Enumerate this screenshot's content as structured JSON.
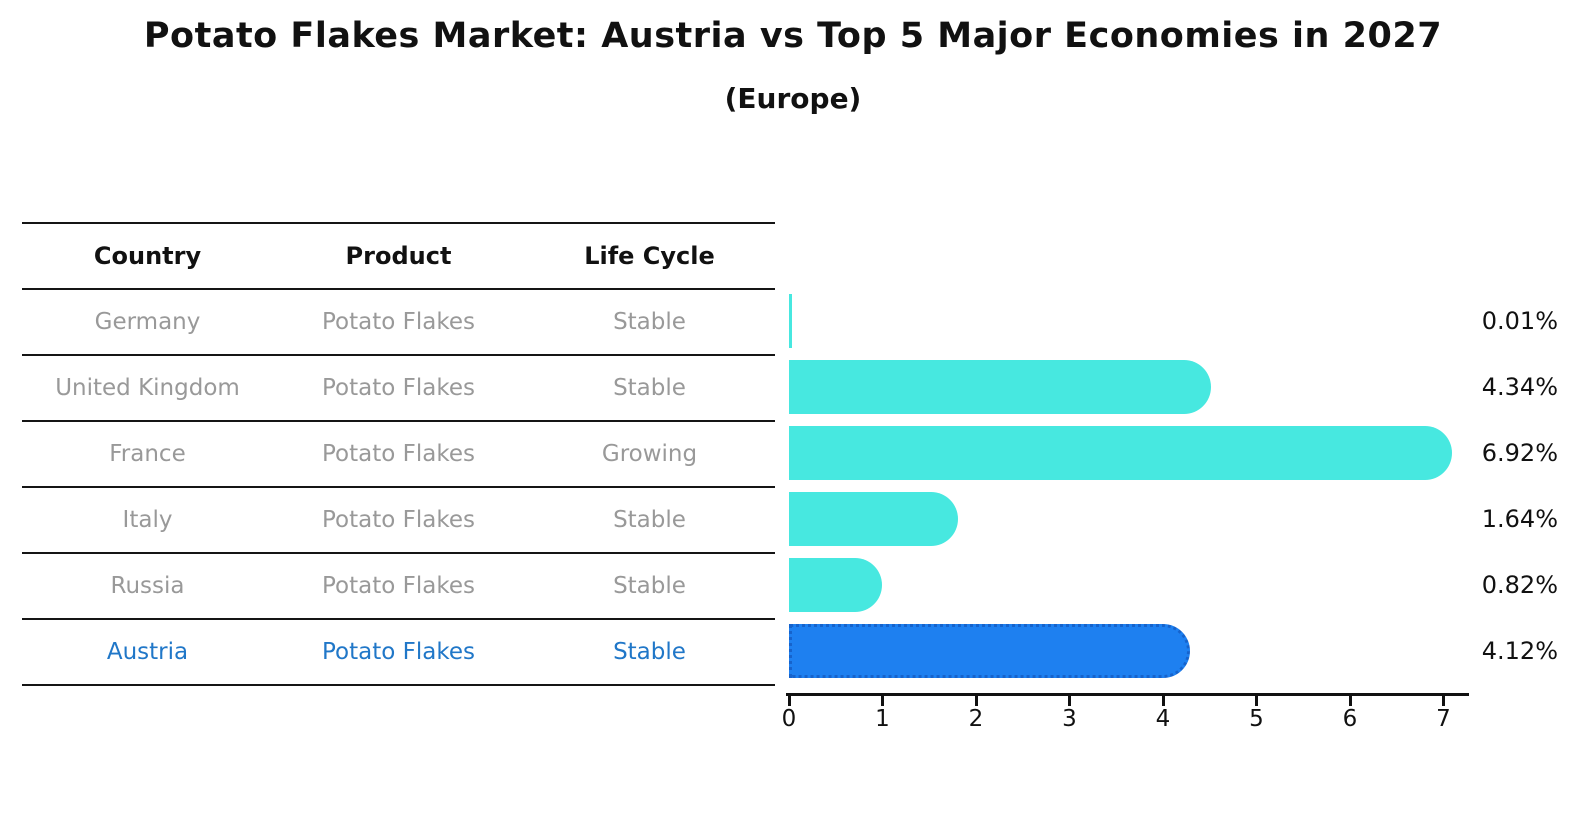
{
  "title": "Potato Flakes Market: Austria vs Top 5 Major Economies in 2027",
  "subtitle": "(Europe)",
  "table": {
    "headers": [
      "Country",
      "Product",
      "Life Cycle"
    ],
    "rows": [
      {
        "country": "Germany",
        "product": "Potato Flakes",
        "life_cycle": "Stable",
        "highlight": false
      },
      {
        "country": "United Kingdom",
        "product": "Potato Flakes",
        "life_cycle": "Stable",
        "highlight": false
      },
      {
        "country": "France",
        "product": "Potato Flakes",
        "life_cycle": "Growing",
        "highlight": false
      },
      {
        "country": "Italy",
        "product": "Potato Flakes",
        "life_cycle": "Stable",
        "highlight": false
      },
      {
        "country": "Russia",
        "product": "Potato Flakes",
        "life_cycle": "Stable",
        "highlight": false
      },
      {
        "country": "Austria",
        "product": "Potato Flakes",
        "life_cycle": "Stable",
        "highlight": true
      }
    ]
  },
  "chart_data": {
    "type": "bar",
    "orientation": "horizontal",
    "title": "Potato Flakes Market: Austria vs Top 5 Major Economies in 2027",
    "subtitle": "(Europe)",
    "categories": [
      "Germany",
      "United Kingdom",
      "France",
      "Italy",
      "Russia",
      "Austria"
    ],
    "values": [
      0.01,
      4.34,
      6.92,
      1.64,
      0.82,
      4.12
    ],
    "value_labels": [
      "0.01%",
      "4.34%",
      "6.92%",
      "1.64%",
      "0.82%",
      "4.12%"
    ],
    "highlight_index": 5,
    "xlim": [
      0,
      7
    ],
    "x_ticks": [
      "0",
      "1",
      "2",
      "3",
      "4",
      "5",
      "6",
      "7"
    ],
    "grid": false,
    "legend": false,
    "xlabel": "",
    "ylabel": ""
  },
  "colors": {
    "bar_default": "#47E8E0",
    "bar_highlight": "#1E80F0",
    "bar_highlight_border": "#1663CC",
    "table_text": "#999999",
    "highlight_text": "#2077C8",
    "header_text": "#111111",
    "axis": "#111111",
    "line": "#151515"
  }
}
